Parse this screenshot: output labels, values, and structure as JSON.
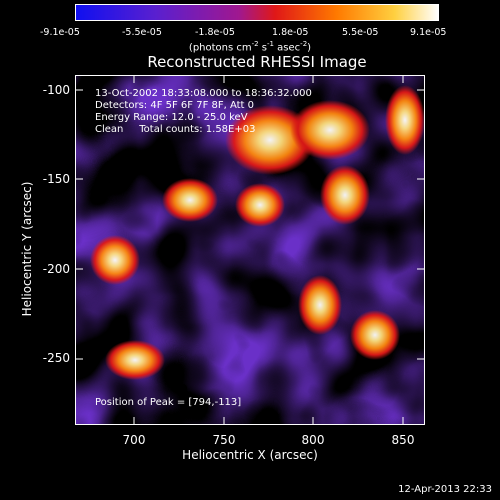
{
  "colorbar": {
    "ticks": [
      "-9.1e-05",
      "-5.5e-05",
      "-1.8e-05",
      "1.8e-05",
      "5.5e-05",
      "9.1e-05"
    ],
    "units_prefix": "(photons cm",
    "units_exp1": "-2",
    "units_mid1": " s",
    "units_exp2": "-1",
    "units_mid2": " asec",
    "units_exp3": "-2",
    "units_suffix": ")"
  },
  "title": "Reconstructed RHESSI Image",
  "info": {
    "line1": "13-Oct-2002 18:33:08.000 to 18:36:32.000",
    "line2": "Detectors: 4F 5F 6F 7F 8F, Att 0",
    "line3": "Energy Range: 12.0 - 25.0 keV",
    "line4": "Clean     Total counts: 1.58E+03",
    "peak": "Position of Peak = [794,-113]"
  },
  "axes": {
    "xlabel": "Heliocentric X (arcsec)",
    "ylabel": "Heliocentric Y (arcsec)",
    "xticks": [
      "700",
      "750",
      "800",
      "850"
    ],
    "yticks": [
      "-100",
      "-150",
      "-200",
      "-250"
    ],
    "xrange": [
      667,
      862
    ],
    "yrange": [
      -287,
      -92
    ]
  },
  "timestamp": "12-Apr-2013 22:33",
  "colors": {
    "background": "#000000",
    "text": "#ffffff"
  }
}
